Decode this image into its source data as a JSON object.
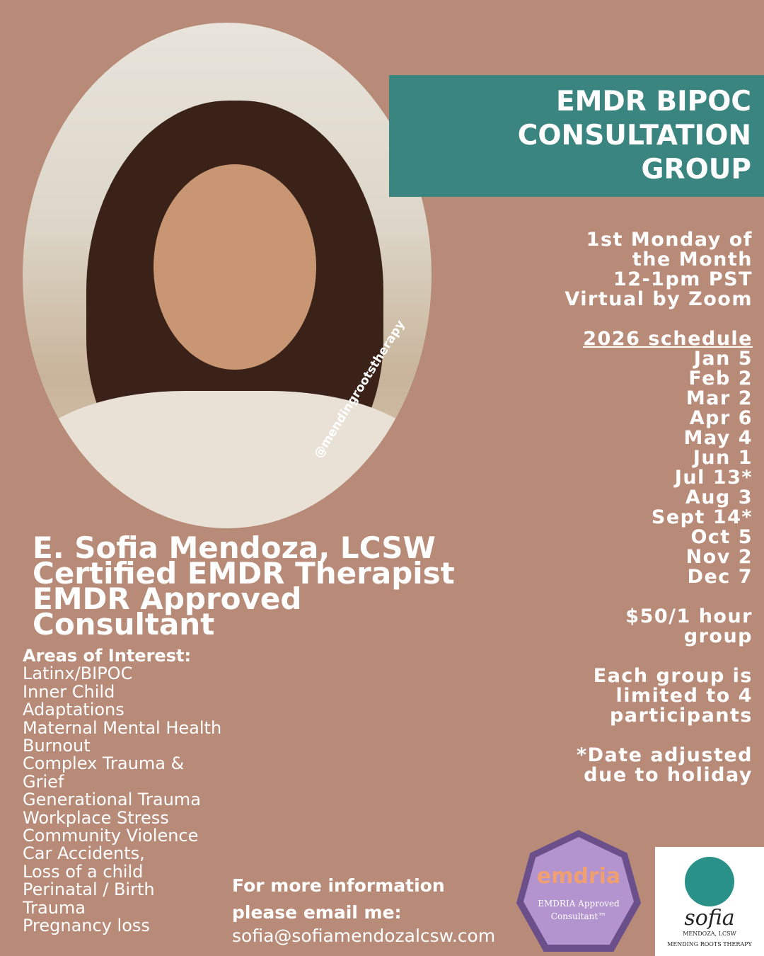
{
  "banner": {
    "lines": [
      "EMDR BIPOC",
      "CONSULTATION",
      "GROUP"
    ]
  },
  "photo": {
    "handle": "@mendingrootstherapy"
  },
  "meeting": [
    "1st Monday of",
    "the Month",
    "12-1pm PST",
    "Virtual by Zoom"
  ],
  "schedule": {
    "heading": "2026 schedule",
    "dates": [
      "Jan 5",
      "Feb 2",
      "Mar 2",
      "Apr 6",
      "May 4",
      "Jun 1",
      "Jul 13*",
      "Aug 3",
      "Sept 14*",
      "Oct 5",
      "Nov 2",
      "Dec 7"
    ]
  },
  "price": [
    "$50/1 hour",
    "group"
  ],
  "limit": [
    "Each group is",
    "limited to 4",
    "participants"
  ],
  "note": [
    "*Date adjusted",
    "due to holiday"
  ],
  "name": [
    "E. Sofia Mendoza, LCSW",
    "Certified EMDR Therapist",
    "EMDR Approved",
    "Consultant"
  ],
  "areas": {
    "heading": "Areas of Interest:",
    "items": [
      "Latinx/BIPOC",
      "Inner Child",
      "Adaptations",
      "Maternal Mental Health",
      "Burnout",
      "Complex Trauma &",
      "Grief",
      "Generational Trauma",
      "Workplace Stress",
      "Community Violence",
      "Car Accidents,",
      "Loss of a child",
      "Perinatal / Birth",
      "Trauma",
      "Pregnancy loss"
    ]
  },
  "contact": {
    "line1": "For more information",
    "line2": "please email me:",
    "email": "sofia@sofiamendozalcsw.com"
  },
  "badge": {
    "brand": "emdria",
    "text1": "EMDRIA Approved",
    "text2": "Consultant™"
  },
  "logo": {
    "script": "sofia",
    "name": "MENDOZA, LCSW",
    "practice": "MENDING ROOTS THERAPY"
  },
  "colors": {
    "background": "#b88a78",
    "banner": "#3b8580"
  }
}
